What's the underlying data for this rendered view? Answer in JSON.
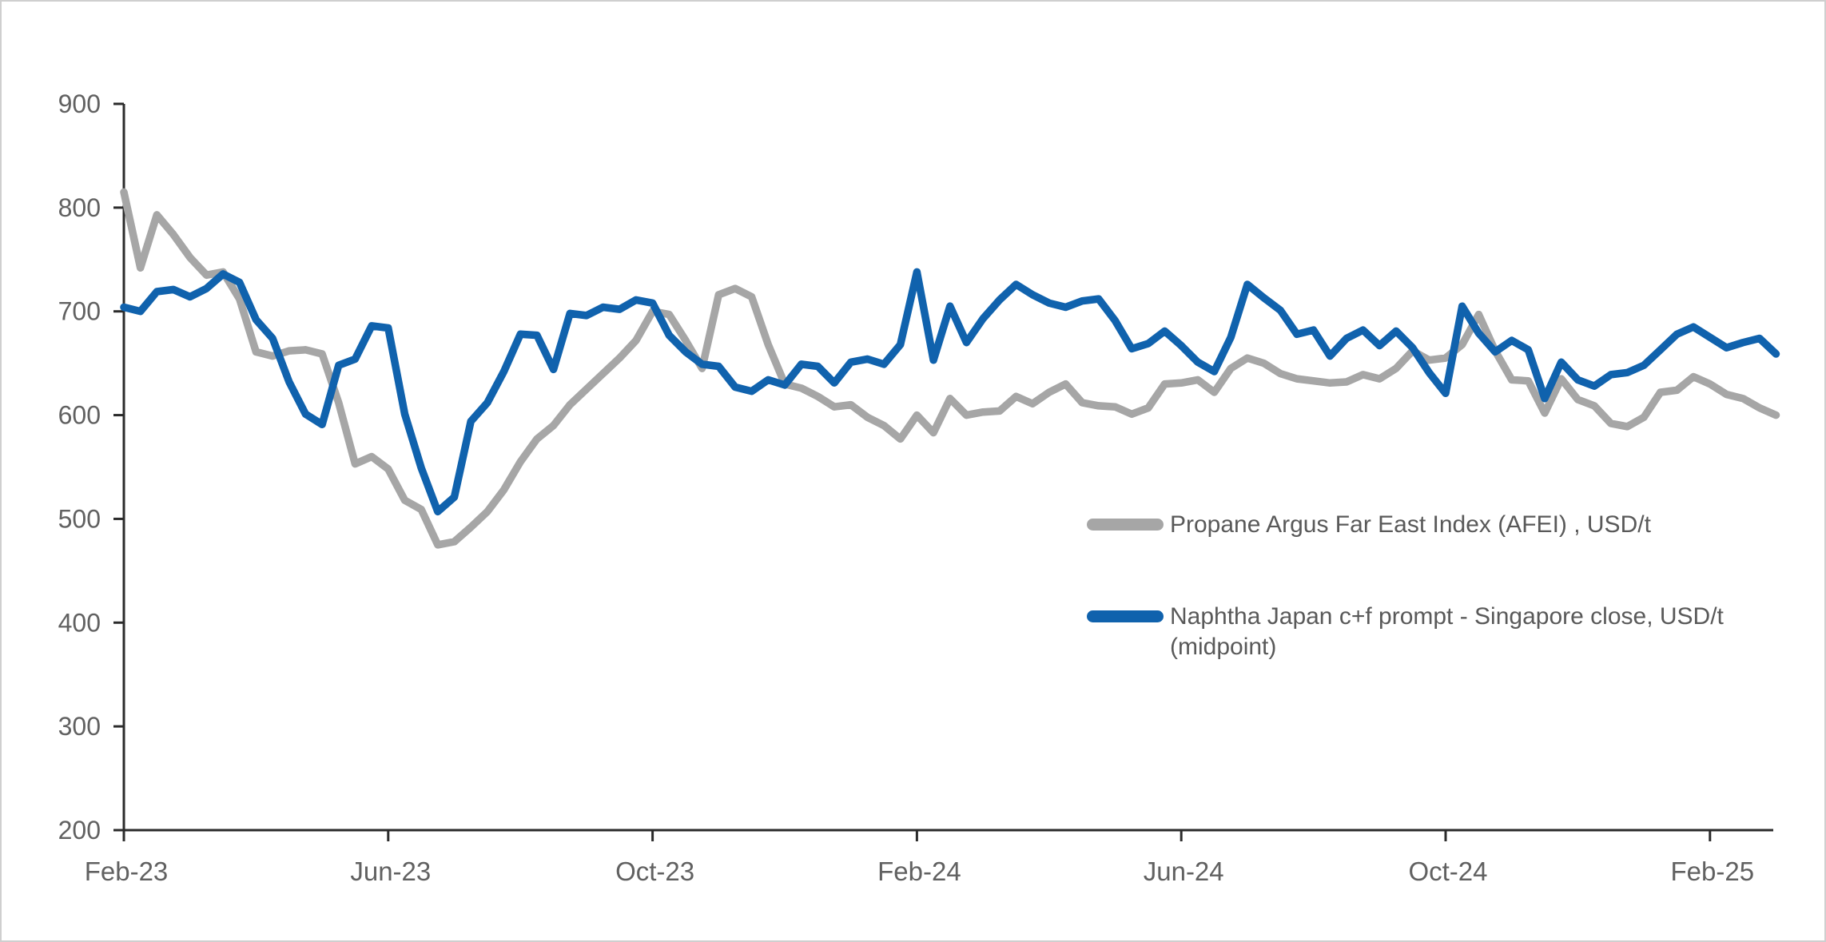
{
  "window": {
    "background": "#FFFFFF",
    "border_color": "#CFCFCF"
  },
  "chart_data": {
    "type": "line",
    "title": "",
    "xlabel": "",
    "ylabel": "",
    "grid": false,
    "legend_position": "middle-right",
    "x_axis": {
      "tick_labels": [
        "Feb-23",
        "Jun-23",
        "Oct-23",
        "Feb-24",
        "Jun-24",
        "Oct-24",
        "Feb-25"
      ],
      "tick_months": [
        0,
        4,
        8,
        12,
        16,
        20,
        24
      ],
      "months_span": 25
    },
    "y_axis": {
      "min": 200,
      "max": 900,
      "tick_step": 100,
      "tick_labels": [
        "200",
        "300",
        "400",
        "500",
        "600",
        "700",
        "800",
        "900"
      ]
    },
    "x_step_months": 0.25,
    "series": [
      {
        "name": "Propane Argus Far East Index (AFEI) , USD/t",
        "color": "#A6A6A6",
        "values": [
          815,
          742,
          793,
          774,
          752,
          735,
          738,
          712,
          661,
          657,
          662,
          663,
          659,
          612,
          553,
          560,
          548,
          518,
          509,
          475,
          478,
          492,
          507,
          528,
          555,
          577,
          590,
          610,
          625,
          640,
          655,
          672,
          700,
          697,
          672,
          645,
          716,
          722,
          714,
          668,
          630,
          626,
          618,
          608,
          610,
          598,
          590,
          577,
          600,
          583,
          616,
          600,
          603,
          604,
          618,
          611,
          622,
          630,
          612,
          609,
          608,
          601,
          607,
          630,
          631,
          634,
          622,
          645,
          655,
          650,
          640,
          635,
          633,
          631,
          632,
          639,
          635,
          645,
          662,
          653,
          655,
          668,
          697,
          662,
          634,
          633,
          602,
          635,
          615,
          609,
          592,
          589,
          598,
          622,
          624,
          637,
          630,
          620,
          616,
          607,
          600
        ]
      },
      {
        "name": "Naphtha Japan c+f prompt  - Singapore close, USD/t (midpoint)",
        "color": "#1062AD",
        "values": [
          704,
          700,
          719,
          721,
          714,
          722,
          736,
          728,
          692,
          674,
          632,
          601,
          591,
          648,
          654,
          686,
          684,
          601,
          549,
          507,
          521,
          594,
          612,
          642,
          678,
          677,
          644,
          698,
          696,
          704,
          702,
          711,
          708,
          677,
          661,
          649,
          647,
          627,
          623,
          634,
          629,
          649,
          647,
          631,
          651,
          654,
          649,
          668,
          738,
          653,
          705,
          670,
          693,
          711,
          726,
          716,
          708,
          704,
          710,
          712,
          691,
          664,
          669,
          681,
          667,
          651,
          642,
          675,
          726,
          713,
          701,
          678,
          682,
          657,
          674,
          682,
          667,
          681,
          665,
          641,
          621,
          705,
          679,
          661,
          672,
          663,
          616,
          651,
          634,
          628,
          639,
          641,
          648,
          663,
          678,
          685,
          675,
          665,
          670,
          674,
          659
        ]
      }
    ]
  },
  "legend": {
    "item_count": 2
  }
}
